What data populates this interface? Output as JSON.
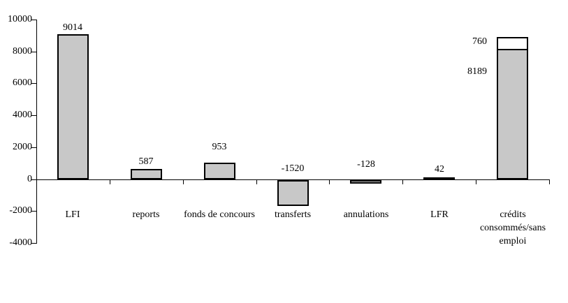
{
  "chart_data": {
    "type": "bar",
    "title": "",
    "categories": [
      "LFI",
      "reports",
      "fonds de concours",
      "transferts",
      "annulations",
      "LFR",
      "crédits consommés/sans emploi"
    ],
    "bars": [
      {
        "category": "LFI",
        "value": 9014,
        "value_label": "9014"
      },
      {
        "category": "reports",
        "value": 587,
        "value_label": "587"
      },
      {
        "category": "fonds de concours",
        "value": 953,
        "value_label": "953"
      },
      {
        "category": "transferts",
        "value": -1520,
        "value_label": "-1520"
      },
      {
        "category": "annulations",
        "value": -128,
        "value_label": "-128"
      },
      {
        "category": "LFR",
        "value": 42,
        "value_label": "42"
      },
      {
        "category": "crédits consommés/sans emploi",
        "segments": [
          {
            "value": 8189,
            "label": "8189",
            "fill": "gray"
          },
          {
            "value": 760,
            "label": "760",
            "fill": "white"
          }
        ]
      }
    ],
    "y_axis": {
      "min": -4000,
      "max": 10000,
      "step": 2000,
      "tick_labels": [
        "10000",
        "8000",
        "6000",
        "4000",
        "2000",
        "0",
        "-2000",
        "-4000"
      ]
    },
    "legend": null,
    "grid": false,
    "colors": {
      "bar_fill": "#c8c8c8",
      "bar_border": "#000000",
      "stacked_top_fill": "#ffffff",
      "axis": "#000000",
      "text": "#000000"
    }
  }
}
